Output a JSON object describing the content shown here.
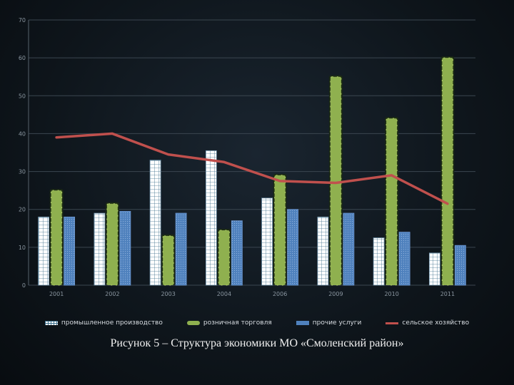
{
  "chart_data": {
    "type": "bar",
    "categories": [
      "2001",
      "2002",
      "2003",
      "2004",
      "2006",
      "2009",
      "2010",
      "2011"
    ],
    "ylim": [
      0,
      70
    ],
    "yticks": [
      "0",
      "10",
      "20",
      "30",
      "40",
      "50",
      "60",
      "70"
    ],
    "grid": true,
    "legend_position": "bottom",
    "series": [
      {
        "name": "промышленное производство",
        "kind": "bar",
        "color": "#ffffff",
        "values": [
          18,
          19,
          33,
          35.5,
          23,
          18,
          12.5,
          8.5
        ]
      },
      {
        "name": "розничная торговля",
        "kind": "bar",
        "color": "#8fb04f",
        "values": [
          25,
          21.5,
          13,
          14.5,
          29,
          55,
          44,
          60
        ]
      },
      {
        "name": "прочие услуги",
        "kind": "bar",
        "color": "#4f81bd",
        "values": [
          18,
          19.5,
          19,
          17,
          20,
          19,
          14,
          10.5
        ]
      },
      {
        "name": "сельское хозяйство",
        "kind": "line",
        "color": "#c0504d",
        "values": [
          39,
          40,
          34.5,
          32.5,
          27.5,
          27,
          29,
          21.5
        ]
      }
    ]
  },
  "caption": "Рисунок 5 – Структура экономики МО «Смоленский район»"
}
